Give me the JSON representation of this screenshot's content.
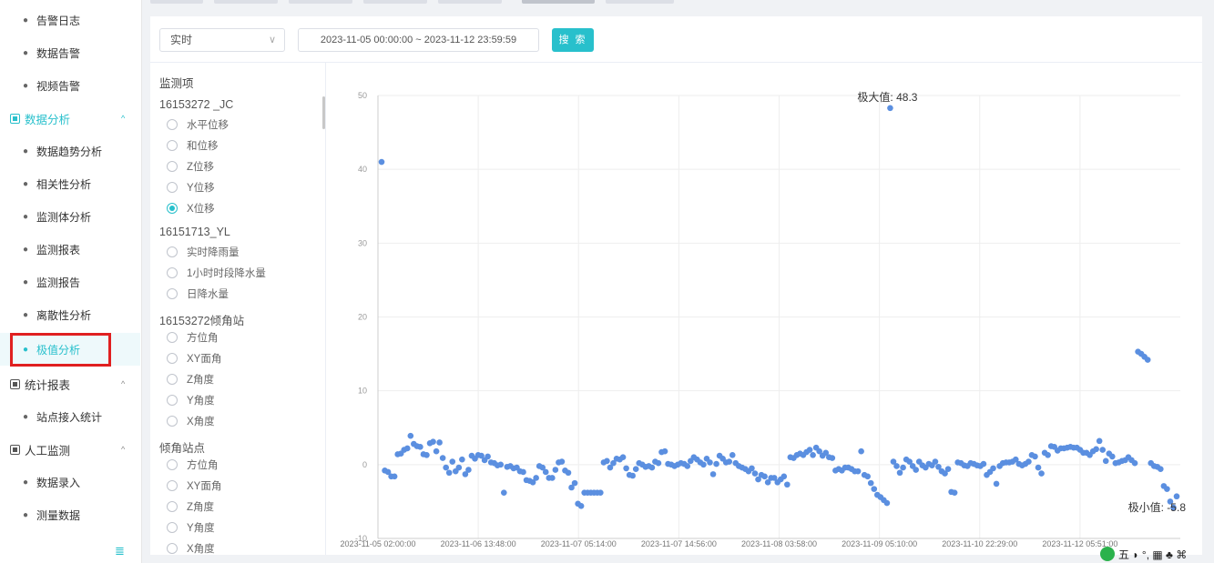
{
  "sidebar": {
    "items": [
      {
        "type": "item",
        "label": "告警日志",
        "top": 4
      },
      {
        "type": "item",
        "label": "数据告警",
        "top": 40
      },
      {
        "type": "item",
        "label": "视频告警",
        "top": 76
      },
      {
        "type": "group",
        "label": "数据分析",
        "top": 112,
        "teal": true,
        "caret": "^"
      },
      {
        "type": "item",
        "label": "数据趋势分析",
        "top": 148
      },
      {
        "type": "item",
        "label": "相关性分析",
        "top": 184
      },
      {
        "type": "item",
        "label": "监测体分析",
        "top": 220
      },
      {
        "type": "item",
        "label": "监测报表",
        "top": 256
      },
      {
        "type": "item",
        "label": "监测报告",
        "top": 292
      },
      {
        "type": "item",
        "label": "离散性分析",
        "top": 328
      },
      {
        "type": "item",
        "label": "极值分析",
        "top": 366,
        "active": true
      },
      {
        "type": "group",
        "label": "统计报表",
        "top": 404,
        "caret": "^"
      },
      {
        "type": "item",
        "label": "站点接入统计",
        "top": 440
      },
      {
        "type": "group",
        "label": "人工监测",
        "top": 476,
        "caret": "^"
      },
      {
        "type": "item",
        "label": "数据录入",
        "top": 512
      },
      {
        "type": "item",
        "label": "测量数据",
        "top": 548
      }
    ],
    "collapse_icon": "≣"
  },
  "toolbar": {
    "mode_value": "实时",
    "mode_arrow": "∨",
    "date_range": "2023-11-05 00:00:00  ~  2023-11-12 23:59:59",
    "search_label": "搜 索"
  },
  "monitor": {
    "title": "监测项",
    "groups": [
      {
        "name": "16153272 _JC",
        "options": [
          {
            "label": "水平位移"
          },
          {
            "label": "和位移"
          },
          {
            "label": "Z位移"
          },
          {
            "label": "Y位移"
          },
          {
            "label": "X位移",
            "checked": true
          }
        ]
      },
      {
        "name": "16151713_YL",
        "options": [
          {
            "label": "实时降雨量"
          },
          {
            "label": "1小时时段降水量"
          },
          {
            "label": "日降水量"
          }
        ]
      },
      {
        "name": "16153272倾角站",
        "options": [
          {
            "label": "方位角"
          },
          {
            "label": "XY面角"
          },
          {
            "label": "Z角度"
          },
          {
            "label": "Y角度"
          },
          {
            "label": "X角度"
          }
        ]
      },
      {
        "name": "倾角站点",
        "options": [
          {
            "label": "方位角"
          },
          {
            "label": "XY面角"
          },
          {
            "label": "Z角度"
          },
          {
            "label": "Y角度"
          },
          {
            "label": "X角度"
          }
        ]
      }
    ]
  },
  "chart_data": {
    "type": "scatter",
    "ylim": [
      -10,
      50
    ],
    "yticks": [
      -10,
      0,
      10,
      20,
      30,
      40,
      50
    ],
    "xtick_labels": [
      "2023-11-05 02:00:00",
      "2023-11-06 13:48:00",
      "2023-11-07 05:14:00",
      "2023-11-07 14:56:00",
      "2023-11-08 03:58:00",
      "2023-11-09 05:10:00",
      "2023-11-10 22:29:00",
      "2023-11-12 05:51:00"
    ],
    "point_color": "#5b8fe0",
    "max_label": "极大值: 48.3",
    "min_label": "极小值: -5.8",
    "values": [
      41,
      -0.8,
      -1,
      -1.6,
      -1.6,
      1.4,
      1.5,
      2,
      2.2,
      3.9,
      2.8,
      2.5,
      2.4,
      1.4,
      1.3,
      2.9,
      3.1,
      1.8,
      3,
      0.9,
      -0.4,
      -1.1,
      0.4,
      -0.9,
      -0.4,
      0.7,
      -1.3,
      -0.7,
      1.2,
      0.8,
      1.3,
      1.2,
      0.6,
      1.1,
      0.3,
      0.2,
      -0.1,
      0,
      -3.8,
      -0.3,
      -0.2,
      -0.5,
      -0.4,
      -0.9,
      -1,
      -2.1,
      -2.2,
      -2.4,
      -1.8,
      -0.2,
      -0.4,
      -1,
      -1.8,
      -1.8,
      -0.7,
      0.3,
      0.4,
      -0.8,
      -1.1,
      -3.1,
      -2.5,
      -5.3,
      -5.6,
      -3.8,
      -3.8,
      -3.8,
      -3.8,
      -3.8,
      -3.8,
      0.3,
      0.5,
      -0.4,
      0.2,
      0.8,
      0.7,
      1,
      -0.5,
      -1.4,
      -1.5,
      -0.6,
      0.2,
      0,
      -0.3,
      -0.2,
      -0.4,
      0.4,
      0.2,
      1.7,
      1.8,
      0.1,
      0,
      -0.2,
      0,
      0.2,
      0.1,
      -0.2,
      0.5,
      1,
      0.7,
      0.3,
      0,
      0.8,
      0.3,
      -1.3,
      0.1,
      1.2,
      0.8,
      0.3,
      0.4,
      1.3,
      0.2,
      -0.2,
      -0.4,
      -0.6,
      -0.9,
      -0.5,
      -1.2,
      -2,
      -1.4,
      -1.6,
      -2.4,
      -1.8,
      -1.8,
      -2.4,
      -2,
      -1.6,
      -2.7,
      1,
      0.9,
      1.3,
      1.5,
      1.3,
      1.7,
      2,
      1.3,
      2.3,
      1.8,
      1.2,
      1.6,
      1,
      0.9,
      -0.8,
      -0.6,
      -0.8,
      -0.4,
      -0.4,
      -0.6,
      -0.9,
      -0.9,
      1.8,
      -1.4,
      -1.6,
      -2.5,
      -3.3,
      -4.1,
      -4.4,
      -4.8,
      -5.2,
      48.3,
      0.4,
      -0.2,
      -1.1,
      -0.4,
      0.7,
      0.4,
      -0.2,
      -0.7,
      0.4,
      -0.1,
      -0.4,
      0.1,
      -0.1,
      0.4,
      -0.3,
      -0.9,
      -1.2,
      -0.6,
      -3.7,
      -3.8,
      0.3,
      0.2,
      -0.1,
      -0.2,
      0.2,
      0.1,
      -0.1,
      -0.2,
      0.1,
      -1.4,
      -1,
      -0.5,
      -2.6,
      -0.2,
      0.2,
      0.3,
      0.3,
      0.4,
      0.7,
      0.1,
      -0.1,
      0.1,
      0.4,
      1.3,
      1.1,
      -0.4,
      -1.2,
      1.6,
      1.3,
      2.5,
      2.4,
      1.9,
      2.2,
      2.2,
      2.3,
      2.4,
      2.3,
      2.3,
      2,
      1.6,
      1.6,
      1.3,
      1.8,
      2.1,
      3.2,
      2,
      0.5,
      1.5,
      1.1,
      0.2,
      0.3,
      0.5,
      0.6,
      1,
      0.6,
      0.2,
      15.3,
      15,
      14.6,
      14.2,
      0.2,
      -0.2,
      -0.3,
      -0.6,
      -2.9,
      -3.3,
      -5,
      -5.8,
      -4.3
    ]
  }
}
